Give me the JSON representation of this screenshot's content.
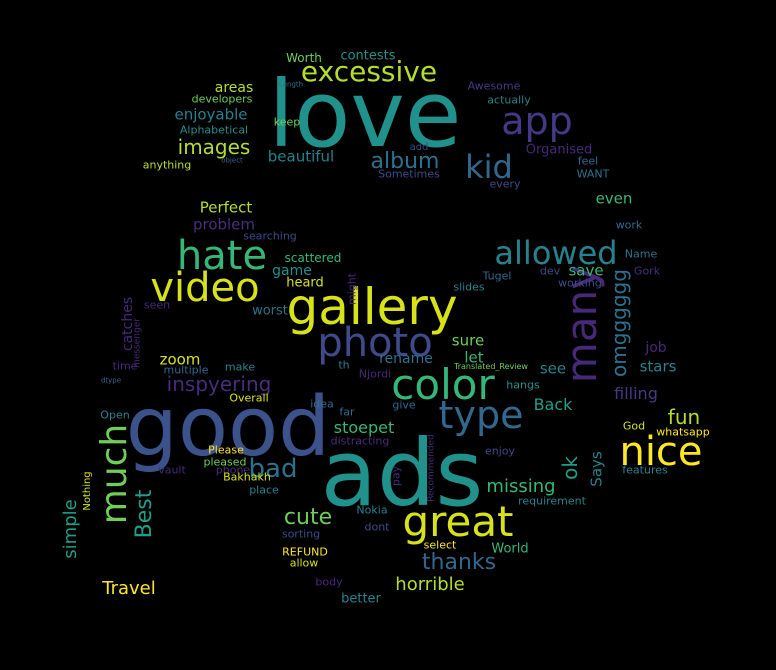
{
  "words": [
    {
      "text": "love",
      "color": "#21918c"
    },
    {
      "text": "good",
      "color": "#3b528b"
    },
    {
      "text": "ads",
      "color": "#21918c"
    },
    {
      "text": "gallery",
      "color": "#d8e219"
    },
    {
      "text": "great",
      "color": "#d8e219"
    },
    {
      "text": "photo",
      "color": "#3e4a89"
    },
    {
      "text": "color",
      "color": "#35b779"
    },
    {
      "text": "many",
      "color": "#482878"
    },
    {
      "text": "nice",
      "color": "#fde725"
    },
    {
      "text": "video",
      "color": "#d8e219"
    },
    {
      "text": "hate",
      "color": "#35b779"
    },
    {
      "text": "type",
      "color": "#31688e"
    },
    {
      "text": "allowed",
      "color": "#26828e"
    },
    {
      "text": "much",
      "color": "#6ece58"
    },
    {
      "text": "excessive",
      "color": "#b5de2b"
    },
    {
      "text": "app",
      "color": "#443983"
    },
    {
      "text": "kid",
      "color": "#31688e"
    },
    {
      "text": "bad",
      "color": "#2c728e"
    },
    {
      "text": "cute",
      "color": "#6ece58"
    },
    {
      "text": "thanks",
      "color": "#31688e"
    },
    {
      "text": "omgggggg",
      "color": "#2c728e"
    },
    {
      "text": "album",
      "color": "#2c728e"
    },
    {
      "text": "images",
      "color": "#b5de2b"
    },
    {
      "text": "inspyering",
      "color": "#472d7b"
    },
    {
      "text": "fun",
      "color": "#b5de2b"
    },
    {
      "text": "ok",
      "color": "#1f9e89"
    },
    {
      "text": "Best",
      "color": "#1f9e89"
    },
    {
      "text": "simple",
      "color": "#1f9e89"
    },
    {
      "text": "missing",
      "color": "#35b779"
    },
    {
      "text": "horrible",
      "color": "#b5de2b"
    },
    {
      "text": "Travel",
      "color": "#fde725"
    },
    {
      "text": "Back",
      "color": "#1f9e89"
    },
    {
      "text": "filling",
      "color": "#443983"
    },
    {
      "text": "stoepet",
      "color": "#35b779"
    },
    {
      "text": "enjoyable",
      "color": "#26828e"
    },
    {
      "text": "beautiful",
      "color": "#26828e"
    },
    {
      "text": "Perfect",
      "color": "#b5de2b"
    },
    {
      "text": "problem",
      "color": "#472d7b"
    },
    {
      "text": "even",
      "color": "#35b779"
    },
    {
      "text": "areas",
      "color": "#b5de2b"
    },
    {
      "text": "save",
      "color": "#35b779"
    },
    {
      "text": "stars",
      "color": "#26828e"
    },
    {
      "text": "job",
      "color": "#482878"
    },
    {
      "text": "sure",
      "color": "#6ece58"
    },
    {
      "text": "let",
      "color": "#35b779"
    },
    {
      "text": "see",
      "color": "#26828e"
    },
    {
      "text": "zoom",
      "color": "#d8e219"
    },
    {
      "text": "rename",
      "color": "#2c728e"
    },
    {
      "text": "Says",
      "color": "#26828e"
    },
    {
      "text": "catches",
      "color": "#482878"
    },
    {
      "text": "game",
      "color": "#21918c"
    },
    {
      "text": "heard",
      "color": "#d8e219"
    },
    {
      "text": "worst",
      "color": "#2c728e"
    },
    {
      "text": "scattered",
      "color": "#35b779"
    },
    {
      "text": "World",
      "color": "#35b779"
    },
    {
      "text": "Organised",
      "color": "#482878"
    },
    {
      "text": "contests",
      "color": "#21918c"
    },
    {
      "text": "Worth",
      "color": "#6ece58"
    },
    {
      "text": "developers",
      "color": "#6ece58"
    },
    {
      "text": "Alphabetical",
      "color": "#21918c"
    },
    {
      "text": "Awesome",
      "color": "#443983"
    },
    {
      "text": "actually",
      "color": "#26828e"
    },
    {
      "text": "keep",
      "color": "#6ece58"
    },
    {
      "text": "add",
      "color": "#3e4a89"
    },
    {
      "text": "feel",
      "color": "#31688e"
    },
    {
      "text": "WANT",
      "color": "#2c728e"
    },
    {
      "text": "Sometimes",
      "color": "#3e4a89"
    },
    {
      "text": "every",
      "color": "#3e4a89"
    },
    {
      "text": "anything",
      "color": "#b5de2b"
    },
    {
      "text": "object",
      "color": "#31688e"
    },
    {
      "text": "Length",
      "color": "#2c728e"
    },
    {
      "text": "searching",
      "color": "#3e4a89"
    },
    {
      "text": "work",
      "color": "#31688e"
    },
    {
      "text": "Name",
      "color": "#2c728e"
    },
    {
      "text": "Gork",
      "color": "#472d7b"
    },
    {
      "text": "dev",
      "color": "#3e4a89"
    },
    {
      "text": "working",
      "color": "#3e4a89"
    },
    {
      "text": "Tugel",
      "color": "#31688e"
    },
    {
      "text": "slides",
      "color": "#26828e"
    },
    {
      "text": "might",
      "color": "#482878"
    },
    {
      "text": "seen",
      "color": "#482878"
    },
    {
      "text": "messenger",
      "color": "#482878"
    },
    {
      "text": "time",
      "color": "#482878"
    },
    {
      "text": "multiple",
      "color": "#31688e"
    },
    {
      "text": "make",
      "color": "#26828e"
    },
    {
      "text": "th",
      "color": "#26828e"
    },
    {
      "text": "Njordi",
      "color": "#482878"
    },
    {
      "text": "Translated_Review",
      "color": "#6ece58"
    },
    {
      "text": "hangs",
      "color": "#21918c"
    },
    {
      "text": "dtype",
      "color": "#31688e"
    },
    {
      "text": "Overall",
      "color": "#d8e219"
    },
    {
      "text": "idea",
      "color": "#31688e"
    },
    {
      "text": "far",
      "color": "#31688e"
    },
    {
      "text": "give",
      "color": "#31688e"
    },
    {
      "text": "distracting",
      "color": "#472d7b"
    },
    {
      "text": "Open",
      "color": "#26828e"
    },
    {
      "text": "Please",
      "color": "#fde725"
    },
    {
      "text": "pleased",
      "color": "#6ece58"
    },
    {
      "text": "phone",
      "color": "#472d7b"
    },
    {
      "text": "vault",
      "color": "#482878"
    },
    {
      "text": "Nothing",
      "color": "#d8e219"
    },
    {
      "text": "Bakhakh",
      "color": "#d8e219"
    },
    {
      "text": "place",
      "color": "#26828e"
    },
    {
      "text": "Nokia",
      "color": "#26828e"
    },
    {
      "text": "dont",
      "color": "#3e4a89"
    },
    {
      "text": "pay",
      "color": "#472d7b"
    },
    {
      "text": "Recommended",
      "color": "#482878"
    },
    {
      "text": "enjoy",
      "color": "#3e4a89"
    },
    {
      "text": "requirement",
      "color": "#26828e"
    },
    {
      "text": "God",
      "color": "#d8e219"
    },
    {
      "text": "whatsapp",
      "color": "#fde725"
    },
    {
      "text": "features",
      "color": "#26828e"
    },
    {
      "text": "sorting",
      "color": "#3e4a89"
    },
    {
      "text": "select",
      "color": "#fde725"
    },
    {
      "text": "REFUND",
      "color": "#fde725"
    },
    {
      "text": "allow",
      "color": "#d8e219"
    },
    {
      "text": "body",
      "color": "#482878"
    },
    {
      "text": "better",
      "color": "#26828e"
    }
  ]
}
